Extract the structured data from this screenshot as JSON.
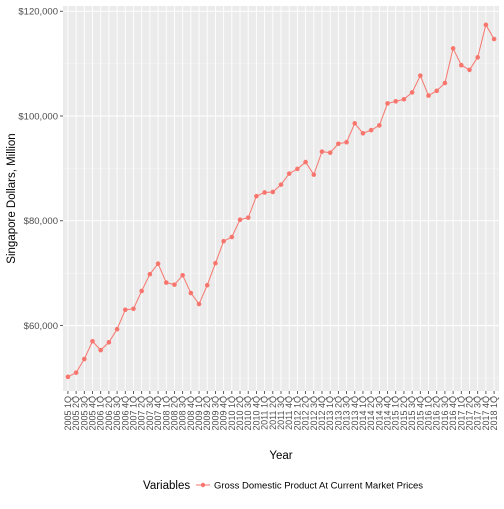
{
  "chart_data": {
    "type": "line",
    "xlabel": "Year",
    "ylabel": "Singapore Dollars, Million",
    "ylim": [
      47500,
      121000
    ],
    "yticks": [
      60000,
      80000,
      100000,
      120000
    ],
    "ytick_labels": [
      "$60,000",
      "$80,000",
      "$100,000",
      "$120,000"
    ],
    "grid": true,
    "legend_position": "bottom",
    "legend_title": "Variables",
    "categories": [
      "2005 1Q",
      "2005 2Q",
      "2005 3Q",
      "2005 4Q",
      "2006 1Q",
      "2006 2Q",
      "2006 3Q",
      "2006 4Q",
      "2007 1Q",
      "2007 2Q",
      "2007 3Q",
      "2007 4Q",
      "2008 1Q",
      "2008 2Q",
      "2008 3Q",
      "2008 4Q",
      "2009 1Q",
      "2009 2Q",
      "2009 3Q",
      "2009 4Q",
      "2010 1Q",
      "2010 2Q",
      "2010 3Q",
      "2010 4Q",
      "2011 1Q",
      "2011 2Q",
      "2011 3Q",
      "2011 4Q",
      "2012 1Q",
      "2012 2Q",
      "2012 3Q",
      "2012 4Q",
      "2013 1Q",
      "2013 2Q",
      "2013 3Q",
      "2013 4Q",
      "2014 1Q",
      "2014 2Q",
      "2014 3Q",
      "2014 4Q",
      "2015 1Q",
      "2015 2Q",
      "2015 3Q",
      "2015 4Q",
      "2016 1Q",
      "2016 2Q",
      "2016 3Q",
      "2016 4Q",
      "2017 1Q",
      "2017 2Q",
      "2017 3Q",
      "2017 4Q",
      "2018 1Q"
    ],
    "series": [
      {
        "name": "Gross Domestic Product At Current Market Prices",
        "color": "#F8766D",
        "values": [
          50200,
          51000,
          53600,
          57000,
          55300,
          56800,
          59300,
          63000,
          63200,
          66600,
          69800,
          71800,
          68200,
          67800,
          69600,
          66200,
          64100,
          67700,
          71900,
          76100,
          76900,
          80200,
          80600,
          84700,
          85400,
          85500,
          86900,
          89000,
          89900,
          91200,
          88800,
          93200,
          93000,
          94700,
          95000,
          98600,
          96700,
          97300,
          98200,
          102400,
          102800,
          103200,
          104500,
          107700,
          103900,
          104800,
          106300,
          112900,
          109700,
          108800,
          111200,
          117400,
          114700
        ]
      }
    ]
  }
}
